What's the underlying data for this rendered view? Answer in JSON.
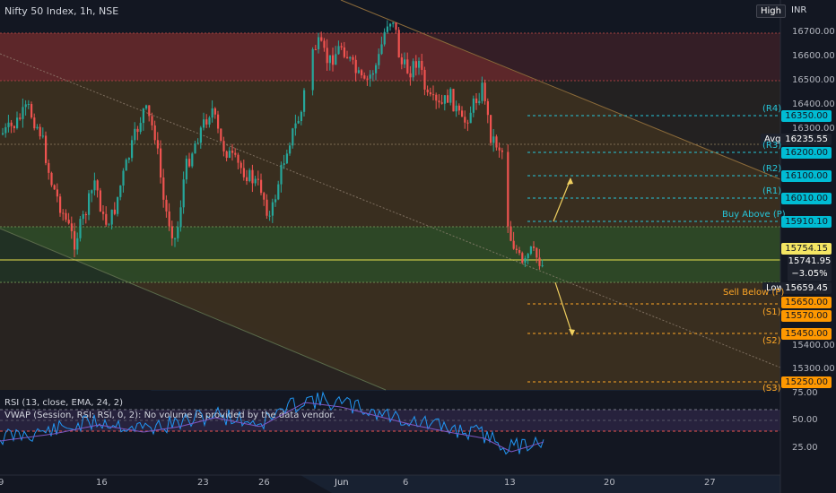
{
  "header": {
    "title": "Nifty 50 Index, 1h, NSE",
    "currency": "INR"
  },
  "indicators": {
    "rsi_label": "RSI (13, close, EMA, 24, 2)",
    "vwap_label": "VWAP (Session, RSI: RSI, 0, 2): No volume is provided by the data vendor."
  },
  "price_axis": {
    "ticks": [
      "16700.00",
      "16600.00",
      "16500.00",
      "16400.00",
      "16300.00",
      "15400.00",
      "15300.00"
    ],
    "rsi_ticks": [
      "75.00",
      "50.00",
      "25.00"
    ]
  },
  "price_tags": {
    "high_label": "High",
    "low_label": "Low",
    "avg_label": "Avg",
    "avg_value": "16235.55",
    "level_16350": "16350.00",
    "level_16200": "16200.00",
    "level_16100": "16100.00",
    "level_16010": "16010.00",
    "level_15910": "15910.10",
    "level_15754": "15754.15",
    "current_price": "15741.95",
    "current_change": "−3.05%",
    "low_value": "15659.45",
    "level_15650": "15650.00",
    "level_15570": "15570.00",
    "level_15450": "15450.00",
    "level_15250": "15250.00"
  },
  "level_labels": {
    "r4": "(R4)",
    "r3": "(R3)",
    "r2": "(R2)",
    "r1": "(R1)",
    "buy_above": "Buy Above (P)",
    "sell_below": "Sell Below (P)",
    "s1": "(S1)",
    "s2": "(S2)",
    "s3": "(S3)"
  },
  "time_axis": {
    "labels": [
      "9",
      "16",
      "23",
      "26",
      "Jun",
      "6",
      "13",
      "20",
      "27"
    ]
  },
  "colors": {
    "background": "#131722",
    "up_candle": "#26a69a",
    "down_candle": "#ef5350",
    "resistance_tag": "#00bcd4",
    "support_tag": "#ff9800",
    "current_tag": "#1e222d",
    "yellow_line": "#e8e04c",
    "rsi_line": "#2196f3",
    "vwap_line": "#7e57c2"
  }
}
